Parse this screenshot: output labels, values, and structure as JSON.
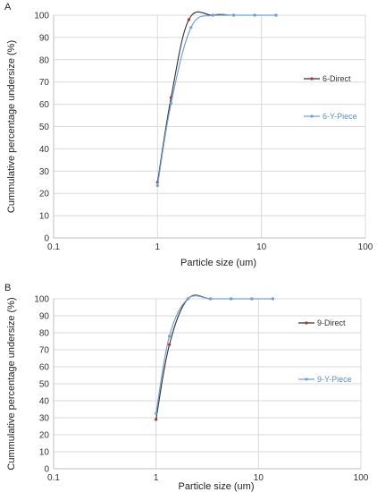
{
  "panels": [
    {
      "letter": "A"
    },
    {
      "letter": "B"
    }
  ],
  "colors": {
    "direct": "#3a2f2f",
    "ypiece": "#6fa0d8",
    "direct_marker": "#b03030",
    "grid": "#d9d9d9",
    "axis": "#bfbfbf"
  },
  "chart_data": [
    {
      "type": "line",
      "xscale": "log",
      "xlim": [
        0.1,
        100
      ],
      "ylim": [
        0,
        100
      ],
      "xticks": [
        "0.1",
        "1",
        "10",
        "100"
      ],
      "yticks": [
        "0",
        "10",
        "20",
        "30",
        "40",
        "50",
        "60",
        "70",
        "80",
        "90",
        "100"
      ],
      "xlabel": "Particle size (um)",
      "ylabel": "Cummulative percentage undersize  (%)",
      "legend_position": "right",
      "series": [
        {
          "name": "6-Direct",
          "x": [
            1.0,
            1.35,
            2.0,
            3.4,
            5.4,
            8.6,
            13.8
          ],
          "y": [
            25,
            63,
            98,
            100,
            100,
            100,
            100
          ]
        },
        {
          "name": "6-Y-Piece",
          "x": [
            1.0,
            1.35,
            2.1,
            3.4,
            5.4,
            8.6,
            13.8
          ],
          "y": [
            23.5,
            60.5,
            94.5,
            100,
            100,
            100,
            100
          ]
        }
      ]
    },
    {
      "type": "line",
      "xscale": "log",
      "xlim": [
        0.1,
        100
      ],
      "ylim": [
        0,
        100
      ],
      "xticks": [
        "0.1",
        "1",
        "10",
        "100"
      ],
      "yticks": [
        "0",
        "10",
        "20",
        "30",
        "40",
        "50",
        "60",
        "70",
        "80",
        "90",
        "100"
      ],
      "xlabel": "Particle size (um)",
      "ylabel": "Cummulative percentage undersize  (%)",
      "legend_position": "right",
      "series": [
        {
          "name": "9-Direct",
          "x": [
            1.0,
            1.35,
            2.05,
            3.4,
            5.4,
            8.6,
            13.8
          ],
          "y": [
            29,
            73,
            100,
            100,
            100,
            100,
            100
          ]
        },
        {
          "name": "9-Y-Piece",
          "x": [
            1.0,
            1.35,
            2.05,
            3.4,
            5.4,
            8.6,
            13.8
          ],
          "y": [
            32.5,
            78,
            100,
            100,
            100,
            100,
            100
          ]
        }
      ]
    }
  ]
}
